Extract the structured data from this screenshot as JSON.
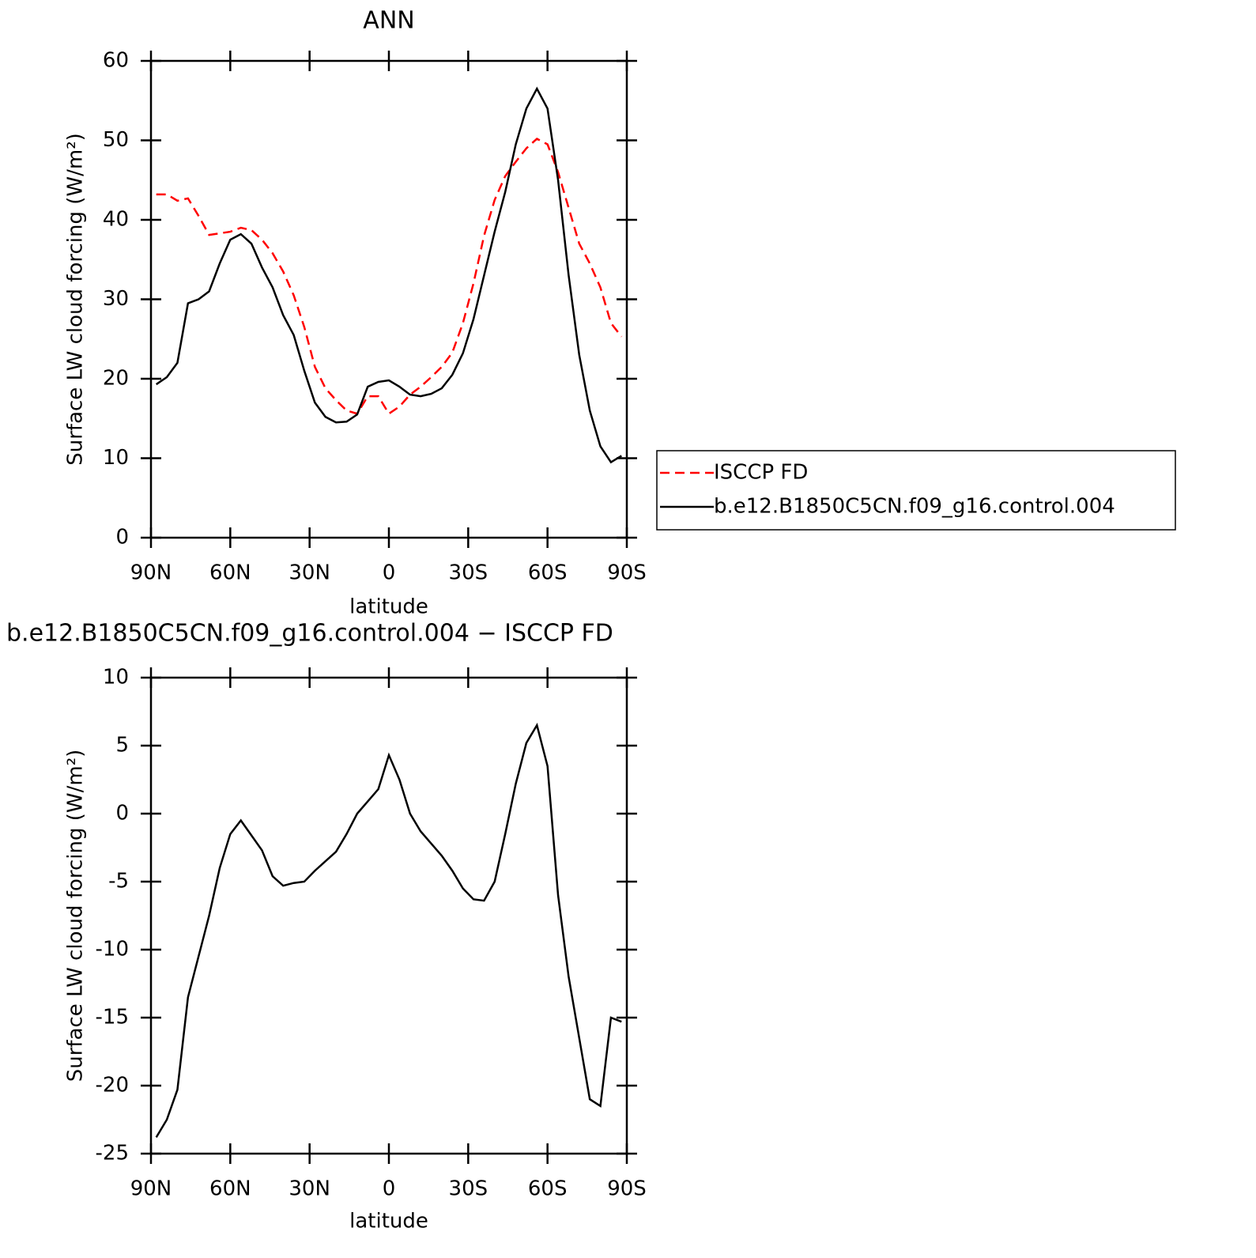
{
  "chart_data": [
    {
      "type": "line",
      "title": "ANN",
      "xlabel": "latitude",
      "ylabel": "Surface LW cloud forcing (W/m²)",
      "x": [
        88,
        84,
        80,
        76,
        72,
        68,
        64,
        60,
        56,
        52,
        48,
        44,
        40,
        36,
        32,
        28,
        24,
        20,
        16,
        12,
        8,
        4,
        0,
        -4,
        -8,
        -12,
        -16,
        -20,
        -24,
        -28,
        -32,
        -36,
        -40,
        -44,
        -48,
        -52,
        -56,
        -60,
        -64,
        -68,
        -72,
        -76,
        -80,
        -84,
        -88
      ],
      "series": [
        {
          "name": "ISCCP FD",
          "color": "#ff0000",
          "style": "dashed",
          "values": [
            43.2,
            43.2,
            42.4,
            42.7,
            40.5,
            38.1,
            38.3,
            38.5,
            39,
            38.7,
            37.5,
            35.8,
            33.5,
            30.5,
            26.5,
            21.5,
            18.8,
            17.3,
            16,
            15.6,
            17.8,
            17.8,
            15.6,
            16.5,
            18,
            19,
            20.2,
            21.5,
            23.3,
            27,
            32,
            38,
            42.5,
            45.5,
            47.3,
            49,
            50.2,
            49.5,
            46,
            41.5,
            37,
            34.5,
            31.5,
            27,
            25.3
          ]
        },
        {
          "name": "b.e12.B1850C5CN.f09_g16.control.004",
          "color": "#000000",
          "style": "solid",
          "values": [
            19.3,
            20.2,
            22,
            29.5,
            30,
            31,
            34.5,
            37.5,
            38.2,
            37,
            34,
            31.5,
            28,
            25.5,
            21,
            17,
            15.2,
            14.5,
            14.6,
            15.5,
            19,
            19.6,
            19.8,
            19,
            18,
            17.8,
            18.1,
            18.8,
            20.5,
            23.2,
            27.5,
            33,
            38.5,
            43.5,
            49.5,
            54,
            56.5,
            54,
            45,
            33,
            23,
            16,
            11.5,
            9.5,
            10.3
          ]
        }
      ],
      "xlim": [
        90,
        -90
      ],
      "xticks": [
        {
          "value": 90,
          "label": "90N"
        },
        {
          "value": 60,
          "label": "60N"
        },
        {
          "value": 30,
          "label": "30N"
        },
        0,
        {
          "value": -30,
          "label": "30S"
        },
        {
          "value": -60,
          "label": "60S"
        },
        {
          "value": -90,
          "label": "90S"
        }
      ],
      "ylim": [
        0,
        60
      ],
      "yticks": [
        0,
        10,
        20,
        30,
        40,
        50,
        60
      ],
      "legend": "right"
    },
    {
      "type": "line",
      "title": "b.e12.B1850C5CN.f09_g16.control.004 − ISCCP FD",
      "xlabel": "latitude",
      "ylabel": "Surface LW cloud forcing (W/m²)",
      "x": [
        88,
        84,
        80,
        76,
        72,
        68,
        64,
        60,
        56,
        52,
        48,
        44,
        40,
        36,
        32,
        28,
        24,
        20,
        16,
        12,
        8,
        4,
        0,
        -4,
        -8,
        -12,
        -16,
        -20,
        -24,
        -28,
        -32,
        -36,
        -40,
        -44,
        -48,
        -52,
        -56,
        -60,
        -64,
        -68,
        -72,
        -76,
        -80,
        -84,
        -88
      ],
      "series": [
        {
          "color": "#000000",
          "style": "solid",
          "values": [
            -23.8,
            -22.5,
            -20.3,
            -13.5,
            -10.5,
            -7.5,
            -4,
            -1.5,
            -0.5,
            -1.6,
            -2.7,
            -4.6,
            -5.3,
            -5.1,
            -5,
            -4.2,
            -3.5,
            -2.8,
            -1.5,
            0,
            0.9,
            1.8,
            4.3,
            2.5,
            0,
            -1.3,
            -2.2,
            -3.1,
            -4.2,
            -5.5,
            -6.3,
            -6.4,
            -5,
            -1.5,
            2.2,
            5.2,
            6.5,
            3.5,
            -6,
            -12,
            -16.5,
            -21,
            -21.5,
            -15,
            -15.3
          ]
        }
      ],
      "xlim": [
        90,
        -90
      ],
      "xticks": [
        {
          "value": 90,
          "label": "90N"
        },
        {
          "value": 60,
          "label": "60N"
        },
        {
          "value": 30,
          "label": "30N"
        },
        0,
        {
          "value": -30,
          "label": "30S"
        },
        {
          "value": -60,
          "label": "60S"
        },
        {
          "value": -90,
          "label": "90S"
        }
      ],
      "ylim": [
        -25,
        10
      ],
      "yticks": [
        -25,
        -20,
        -15,
        -10,
        -5,
        0,
        5,
        10
      ]
    }
  ]
}
